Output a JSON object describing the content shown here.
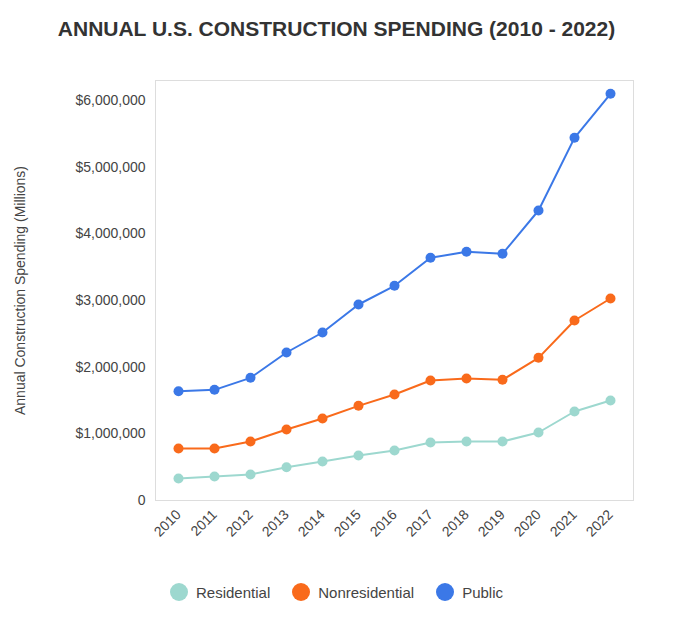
{
  "chart_data": {
    "type": "line",
    "title": "ANNUAL U.S. CONSTRUCTION SPENDING (2010 - 2022)",
    "y_label": "Annual Construction Spending (Millions)",
    "categories": [
      "2010",
      "2011",
      "2012",
      "2013",
      "2014",
      "2015",
      "2016",
      "2017",
      "2018",
      "2019",
      "2020",
      "2021",
      "2022"
    ],
    "series": [
      {
        "name": "Residential",
        "color": "#9dd8cf",
        "values": [
          330000,
          360000,
          390000,
          500000,
          585000,
          675000,
          750000,
          870000,
          885000,
          885000,
          1020000,
          1335000,
          1500000
        ]
      },
      {
        "name": "Nonresidential",
        "color": "#f96a1b",
        "values": [
          780000,
          780000,
          885000,
          1065000,
          1230000,
          1420000,
          1590000,
          1800000,
          1830000,
          1810000,
          2140000,
          2700000,
          3030000
        ]
      },
      {
        "name": "Public",
        "color": "#3b78e7",
        "values": [
          1640000,
          1660000,
          1840000,
          2220000,
          2520000,
          2940000,
          3220000,
          3640000,
          3730000,
          3700000,
          4350000,
          5440000,
          6100000
        ]
      }
    ],
    "ylim": [
      0,
      6300000
    ],
    "yticks": [
      0,
      {
        "value": 1000000,
        "label": "$1,000,000"
      },
      {
        "value": 2000000,
        "label": "$2,000,000"
      },
      {
        "value": 3000000,
        "label": "$3,000,000"
      },
      {
        "value": 4000000,
        "label": "$4,000,000"
      },
      {
        "value": 5000000,
        "label": "$5,000,000"
      },
      {
        "value": 6000000,
        "label": "$6,000,000"
      }
    ],
    "grid": false,
    "marker": "circle",
    "line_style": "solid",
    "legend": "bottom"
  }
}
